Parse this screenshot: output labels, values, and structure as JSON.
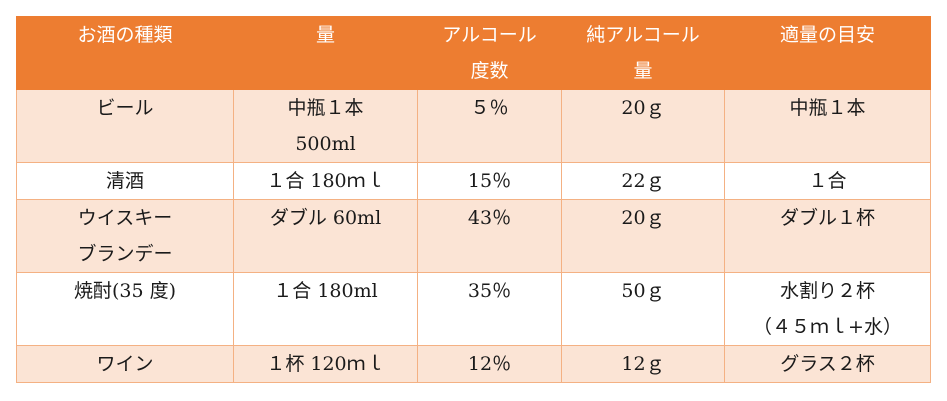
{
  "header": {
    "col1": "お酒の種類",
    "col2": "量",
    "col3": [
      "アルコール",
      "度数"
    ],
    "col4": [
      "純アルコール",
      "量"
    ],
    "col5": "適量の目安"
  },
  "rows": [
    {
      "type": [
        "ビール"
      ],
      "amount": [
        "中瓶１本",
        "500ml"
      ],
      "abv": "５％",
      "pure": "20ｇ",
      "guide": [
        "中瓶１本"
      ]
    },
    {
      "type": [
        "清酒"
      ],
      "amount": [
        "１合 180ｍｌ"
      ],
      "abv": "15％",
      "pure": "22ｇ",
      "guide": [
        "１合"
      ]
    },
    {
      "type": [
        "ウイスキー",
        "ブランデー"
      ],
      "amount": [
        "ダブル 60ml"
      ],
      "abv": "43％",
      "pure": "20ｇ",
      "guide": [
        "ダブル１杯"
      ]
    },
    {
      "type": [
        "焼酎(35 度)"
      ],
      "amount": [
        "１合 180ml"
      ],
      "abv": "35％",
      "pure": "50ｇ",
      "guide": [
        "水割り２杯",
        "（４５ｍｌ+水）"
      ]
    },
    {
      "type": [
        "ワイン"
      ],
      "amount": [
        "１杯 120ｍｌ"
      ],
      "abv": "12％",
      "pure": "12ｇ",
      "guide": [
        "グラス２杯"
      ]
    }
  ],
  "colors": {
    "header_bg": "#ed7d31",
    "shaded_row": "#fbe4d5",
    "border": "#f4b183",
    "header_text": "#ffffff"
  }
}
